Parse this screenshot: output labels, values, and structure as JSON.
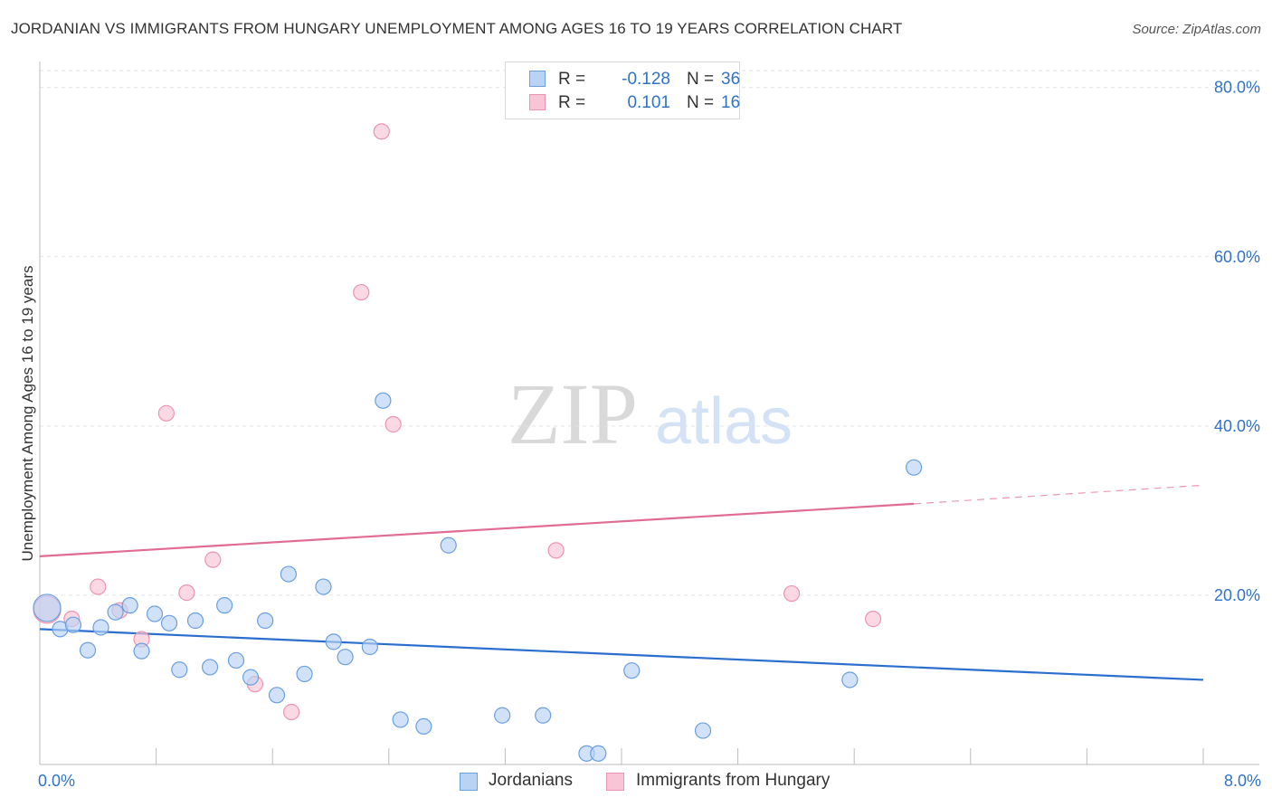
{
  "title": "JORDANIAN VS IMMIGRANTS FROM HUNGARY UNEMPLOYMENT AMONG AGES 16 TO 19 YEARS CORRELATION CHART",
  "source": "Source: ZipAtlas.com",
  "watermark": {
    "zip": "ZIP",
    "atlas": "atlas"
  },
  "legend": {
    "series1": {
      "r_label": "R =",
      "r_value": "-0.128",
      "n_label": "N =",
      "n_value": "36"
    },
    "series2": {
      "r_label": "R =",
      "r_value": "0.101",
      "n_label": "N =",
      "n_value": "16"
    }
  },
  "bottom_legend": {
    "series1": "Jordanians",
    "series2": "Immigrants from Hungary"
  },
  "colors": {
    "blue_fill": "#b9d3f5",
    "blue_stroke": "#6a9fe0",
    "blue_line": "#2b6fce",
    "pink_fill": "#f9c5d6",
    "pink_stroke": "#ec93b0",
    "pink_line": "#e06b93",
    "axis_text": "#2f72c8"
  },
  "chart_data": {
    "type": "scatter",
    "title": "JORDANIAN VS IMMIGRANTS FROM HUNGARY UNEMPLOYMENT AMONG AGES 16 TO 19 YEARS CORRELATION CHART",
    "xlabel": "",
    "ylabel": "Unemployment Among Ages 16 to 19 years",
    "xlim": [
      0,
      8
    ],
    "ylim": [
      0,
      82
    ],
    "x_tick_labels": [
      "0.0%",
      "8.0%"
    ],
    "y_ticks": [
      20,
      40,
      60,
      80
    ],
    "y_tick_labels": [
      "20.0%",
      "40.0%",
      "60.0%",
      "80.0%"
    ],
    "grid": true,
    "series": [
      {
        "name": "Jordanians",
        "points": [
          [
            0.05,
            18.5
          ],
          [
            0.14,
            16.0
          ],
          [
            0.23,
            16.5
          ],
          [
            0.33,
            13.5
          ],
          [
            0.42,
            16.2
          ],
          [
            0.52,
            18.0
          ],
          [
            0.62,
            18.8
          ],
          [
            0.7,
            13.4
          ],
          [
            0.79,
            17.8
          ],
          [
            0.89,
            16.7
          ],
          [
            0.96,
            11.2
          ],
          [
            1.07,
            17.0
          ],
          [
            1.17,
            11.5
          ],
          [
            1.27,
            18.8
          ],
          [
            1.35,
            12.3
          ],
          [
            1.45,
            10.3
          ],
          [
            1.55,
            17.0
          ],
          [
            1.63,
            8.2
          ],
          [
            1.71,
            22.5
          ],
          [
            1.82,
            10.7
          ],
          [
            1.95,
            21.0
          ],
          [
            2.02,
            14.5
          ],
          [
            2.1,
            12.7
          ],
          [
            2.27,
            13.9
          ],
          [
            2.36,
            43.0
          ],
          [
            2.48,
            5.3
          ],
          [
            2.64,
            4.5
          ],
          [
            2.81,
            25.9
          ],
          [
            3.18,
            5.8
          ],
          [
            3.46,
            5.8
          ],
          [
            3.76,
            1.3
          ],
          [
            3.84,
            1.3
          ],
          [
            4.07,
            11.1
          ],
          [
            4.56,
            4.0
          ],
          [
            5.57,
            10.0
          ],
          [
            6.01,
            35.1
          ]
        ],
        "trend": {
          "x": [
            0,
            8
          ],
          "y": [
            16.0,
            10.0
          ]
        }
      },
      {
        "name": "Immigrants from Hungary",
        "points": [
          [
            0.05,
            18.3
          ],
          [
            0.22,
            17.2
          ],
          [
            0.4,
            21.0
          ],
          [
            0.55,
            18.2
          ],
          [
            0.7,
            14.8
          ],
          [
            0.87,
            41.5
          ],
          [
            1.01,
            20.3
          ],
          [
            1.19,
            24.2
          ],
          [
            1.48,
            9.5
          ],
          [
            1.73,
            6.2
          ],
          [
            2.21,
            55.8
          ],
          [
            2.35,
            74.8
          ],
          [
            2.43,
            40.2
          ],
          [
            3.55,
            25.3
          ],
          [
            5.17,
            20.2
          ],
          [
            5.73,
            17.2
          ]
        ],
        "trend": {
          "x": [
            0,
            6.01
          ],
          "y": [
            24.6,
            30.8
          ]
        },
        "trend_dashed": {
          "x": [
            6.01,
            8
          ],
          "y": [
            30.8,
            33.0
          ]
        }
      }
    ]
  }
}
